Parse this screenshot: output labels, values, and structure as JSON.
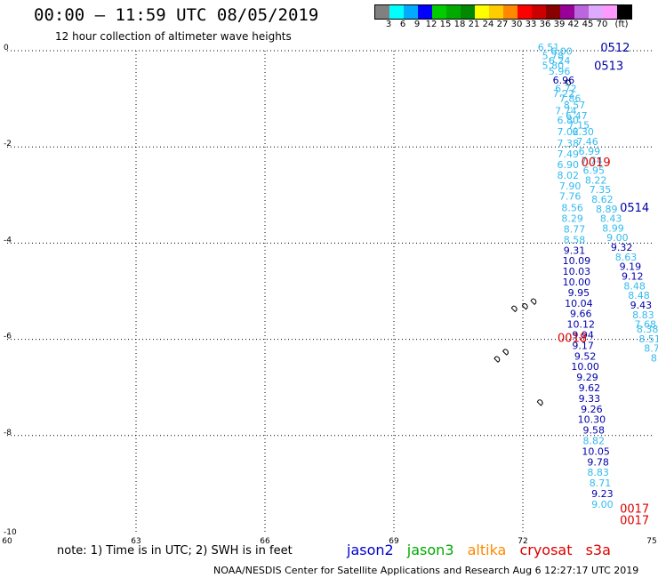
{
  "title": "00:00 – 11:59 UTC 08/05/2019",
  "subtitle": "12 hour collection of altimeter wave heights",
  "legend": {
    "colors": [
      "#808080",
      "#00ffff",
      "#00aaff",
      "#0000ff",
      "#00cc00",
      "#00aa00",
      "#008800",
      "#ffff00",
      "#ffcc00",
      "#ff8800",
      "#ff0000",
      "#cc0000",
      "#880000",
      "#990099",
      "#bb66dd",
      "#ddaaff",
      "#ff99ff",
      "#000000"
    ],
    "labels": [
      "3",
      "6",
      "9",
      "12",
      "15",
      "18",
      "21",
      "24",
      "27",
      "30",
      "33",
      "36",
      "39",
      "42",
      "45",
      "70",
      "(ft)"
    ]
  },
  "axes": {
    "x_ticks": [
      "60",
      "63",
      "66",
      "69",
      "72",
      "75"
    ],
    "y_ticks": [
      "0",
      "-2",
      "-4",
      "-6",
      "-8",
      "-10"
    ]
  },
  "colors": {
    "jason2": "#0000cc",
    "jason3": "#00aa00",
    "altika": "#ff8800",
    "cryosat": "#dd0000",
    "s3a": "#dd0000",
    "light": "#33bbee",
    "dark": "#0000aa",
    "red": "#dd0000"
  },
  "passes": [
    {
      "label": "0512",
      "lon": 74.15,
      "lat": -0.02,
      "color": "#0000aa"
    },
    {
      "label": "0513",
      "lon": 74.0,
      "lat": -0.4,
      "color": "#0000aa"
    },
    {
      "label": "0019",
      "lon": 73.7,
      "lat": -2.4,
      "color": "#dd0000"
    },
    {
      "label": "0514",
      "lon": 74.6,
      "lat": -3.35,
      "color": "#0000aa"
    },
    {
      "label": "0018",
      "lon": 73.15,
      "lat": -6.05,
      "color": "#dd0000"
    },
    {
      "label": "0017",
      "lon": 74.6,
      "lat": -9.6,
      "color": "#dd0000"
    },
    {
      "label": "0017",
      "lon": 74.6,
      "lat": -9.84,
      "color": "#dd0000"
    }
  ],
  "track_values": [
    {
      "v": "6.51",
      "lon": 72.6,
      "lat": 0.0,
      "c": "light"
    },
    {
      "v": "6.00",
      "lon": 72.9,
      "lat": -0.08,
      "c": "light"
    },
    {
      "v": "5.78",
      "lon": 72.7,
      "lat": -0.18,
      "c": "light"
    },
    {
      "v": "6.24",
      "lon": 72.85,
      "lat": -0.28,
      "c": "light"
    },
    {
      "v": "5.80",
      "lon": 72.7,
      "lat": -0.38,
      "c": "light"
    },
    {
      "v": "5.96",
      "lon": 72.85,
      "lat": -0.5,
      "c": "light"
    },
    {
      "v": "6.96",
      "lon": 72.95,
      "lat": -0.68,
      "c": "dark"
    },
    {
      "v": "6.72",
      "lon": 73.0,
      "lat": -0.86,
      "c": "light"
    },
    {
      "v": "7.22",
      "lon": 72.95,
      "lat": -0.96,
      "c": "light"
    },
    {
      "v": "7.86",
      "lon": 73.1,
      "lat": -1.06,
      "c": "light"
    },
    {
      "v": "8.57",
      "lon": 73.2,
      "lat": -1.2,
      "c": "light"
    },
    {
      "v": "7.74",
      "lon": 73.0,
      "lat": -1.32,
      "c": "light"
    },
    {
      "v": "6.47",
      "lon": 73.25,
      "lat": -1.42,
      "c": "light"
    },
    {
      "v": "6.80",
      "lon": 73.05,
      "lat": -1.52,
      "c": "light"
    },
    {
      "v": "7.15",
      "lon": 73.3,
      "lat": -1.62,
      "c": "light"
    },
    {
      "v": "7.02",
      "lon": 73.05,
      "lat": -1.76,
      "c": "light"
    },
    {
      "v": "6.30",
      "lon": 73.4,
      "lat": -1.76,
      "c": "light"
    },
    {
      "v": "7.46",
      "lon": 73.5,
      "lat": -1.96,
      "c": "light"
    },
    {
      "v": "7.38",
      "lon": 73.05,
      "lat": -2.0,
      "c": "light"
    },
    {
      "v": "6.99",
      "lon": 73.55,
      "lat": -2.16,
      "c": "light"
    },
    {
      "v": "7.49",
      "lon": 73.05,
      "lat": -2.22,
      "c": "light"
    },
    {
      "v": "7.74",
      "lon": 73.6,
      "lat": -2.36,
      "c": "light"
    },
    {
      "v": "6.90",
      "lon": 73.05,
      "lat": -2.44,
      "c": "light"
    },
    {
      "v": "6.95",
      "lon": 73.65,
      "lat": -2.56,
      "c": "light"
    },
    {
      "v": "8.02",
      "lon": 73.05,
      "lat": -2.66,
      "c": "light"
    },
    {
      "v": "8.22",
      "lon": 73.7,
      "lat": -2.76,
      "c": "light"
    },
    {
      "v": "7.90",
      "lon": 73.1,
      "lat": -2.88,
      "c": "light"
    },
    {
      "v": "7.35",
      "lon": 73.8,
      "lat": -2.96,
      "c": "light"
    },
    {
      "v": "7.76",
      "lon": 73.1,
      "lat": -3.1,
      "c": "light"
    },
    {
      "v": "8.62",
      "lon": 73.85,
      "lat": -3.16,
      "c": "light"
    },
    {
      "v": "8.56",
      "lon": 73.15,
      "lat": -3.34,
      "c": "light"
    },
    {
      "v": "8.89",
      "lon": 73.95,
      "lat": -3.36,
      "c": "light"
    },
    {
      "v": "8.29",
      "lon": 73.15,
      "lat": -3.56,
      "c": "light"
    },
    {
      "v": "8.43",
      "lon": 74.05,
      "lat": -3.56,
      "c": "light"
    },
    {
      "v": "8.99",
      "lon": 74.1,
      "lat": -3.76,
      "c": "light"
    },
    {
      "v": "8.77",
      "lon": 73.2,
      "lat": -3.78,
      "c": "light"
    },
    {
      "v": "9.00",
      "lon": 74.2,
      "lat": -3.96,
      "c": "light"
    },
    {
      "v": "8.58",
      "lon": 73.2,
      "lat": -4.0,
      "c": "light"
    },
    {
      "v": "9.32",
      "lon": 74.3,
      "lat": -4.16,
      "c": "dark"
    },
    {
      "v": "9.31",
      "lon": 73.2,
      "lat": -4.22,
      "c": "dark"
    },
    {
      "v": "8.63",
      "lon": 74.4,
      "lat": -4.36,
      "c": "light"
    },
    {
      "v": "10.09",
      "lon": 73.25,
      "lat": -4.44,
      "c": "dark"
    },
    {
      "v": "9.19",
      "lon": 74.5,
      "lat": -4.56,
      "c": "dark"
    },
    {
      "v": "10.03",
      "lon": 73.25,
      "lat": -4.66,
      "c": "dark"
    },
    {
      "v": "9.12",
      "lon": 74.55,
      "lat": -4.76,
      "c": "dark"
    },
    {
      "v": "10.00",
      "lon": 73.25,
      "lat": -4.88,
      "c": "dark"
    },
    {
      "v": "8.48",
      "lon": 74.6,
      "lat": -4.96,
      "c": "light"
    },
    {
      "v": "9.95",
      "lon": 73.3,
      "lat": -5.1,
      "c": "dark"
    },
    {
      "v": "8.48",
      "lon": 74.7,
      "lat": -5.16,
      "c": "light"
    },
    {
      "v": "10.04",
      "lon": 73.3,
      "lat": -5.32,
      "c": "dark"
    },
    {
      "v": "9.43",
      "lon": 74.75,
      "lat": -5.36,
      "c": "dark"
    },
    {
      "v": "8.83",
      "lon": 74.8,
      "lat": -5.56,
      "c": "light"
    },
    {
      "v": "9.66",
      "lon": 73.35,
      "lat": -5.54,
      "c": "dark"
    },
    {
      "v": "7.68",
      "lon": 74.85,
      "lat": -5.76,
      "c": "light"
    },
    {
      "v": "10.12",
      "lon": 73.35,
      "lat": -5.76,
      "c": "dark"
    },
    {
      "v": "8.38",
      "lon": 74.9,
      "lat": -5.86,
      "c": "light"
    },
    {
      "v": "9.94",
      "lon": 73.4,
      "lat": -5.98,
      "c": "dark"
    },
    {
      "v": "8.51",
      "lon": 74.95,
      "lat": -6.06,
      "c": "light"
    },
    {
      "v": "9.17",
      "lon": 73.4,
      "lat": -6.2,
      "c": "dark"
    },
    {
      "v": "8.7",
      "lon": 75.0,
      "lat": -6.26,
      "c": "light"
    },
    {
      "v": "9.52",
      "lon": 73.45,
      "lat": -6.42,
      "c": "dark"
    },
    {
      "v": "8",
      "lon": 75.05,
      "lat": -6.46,
      "c": "light"
    },
    {
      "v": "10.00",
      "lon": 73.45,
      "lat": -6.64,
      "c": "dark"
    },
    {
      "v": "9.29",
      "lon": 73.5,
      "lat": -6.86,
      "c": "dark"
    },
    {
      "v": "9.62",
      "lon": 73.55,
      "lat": -7.08,
      "c": "dark"
    },
    {
      "v": "9.33",
      "lon": 73.55,
      "lat": -7.3,
      "c": "dark"
    },
    {
      "v": "9.26",
      "lon": 73.6,
      "lat": -7.52,
      "c": "dark"
    },
    {
      "v": "10.30",
      "lon": 73.6,
      "lat": -7.74,
      "c": "dark"
    },
    {
      "v": "9.58",
      "lon": 73.65,
      "lat": -7.96,
      "c": "dark"
    },
    {
      "v": "8.82",
      "lon": 73.65,
      "lat": -8.18,
      "c": "light"
    },
    {
      "v": "10.05",
      "lon": 73.7,
      "lat": -8.4,
      "c": "dark"
    },
    {
      "v": "9.78",
      "lon": 73.75,
      "lat": -8.62,
      "c": "dark"
    },
    {
      "v": "8.83",
      "lon": 73.75,
      "lat": -8.84,
      "c": "light"
    },
    {
      "v": "8.71",
      "lon": 73.8,
      "lat": -9.06,
      "c": "light"
    },
    {
      "v": "9.23",
      "lon": 73.85,
      "lat": -9.28,
      "c": "dark"
    },
    {
      "v": "9.00",
      "lon": 73.85,
      "lat": -9.5,
      "c": "light"
    }
  ],
  "land": [
    {
      "lon": 71.8,
      "lat": -5.35
    },
    {
      "lon": 72.05,
      "lat": -5.3
    },
    {
      "lon": 72.25,
      "lat": -5.2
    },
    {
      "lon": 71.4,
      "lat": -6.4
    },
    {
      "lon": 71.6,
      "lat": -6.25
    },
    {
      "lon": 72.4,
      "lat": -7.3
    },
    {
      "lon": 73.05,
      "lat": -0.65
    }
  ],
  "footer": {
    "note": "note:  1) Time is in UTC;  2) SWH is in feet",
    "sats": [
      "jason2",
      "jason3",
      "altika",
      "cryosat",
      "s3a"
    ],
    "credit": "NOAA/NESDIS Center for Satellite Applications and Research    Aug  6 12:27:17 UTC 2019"
  }
}
